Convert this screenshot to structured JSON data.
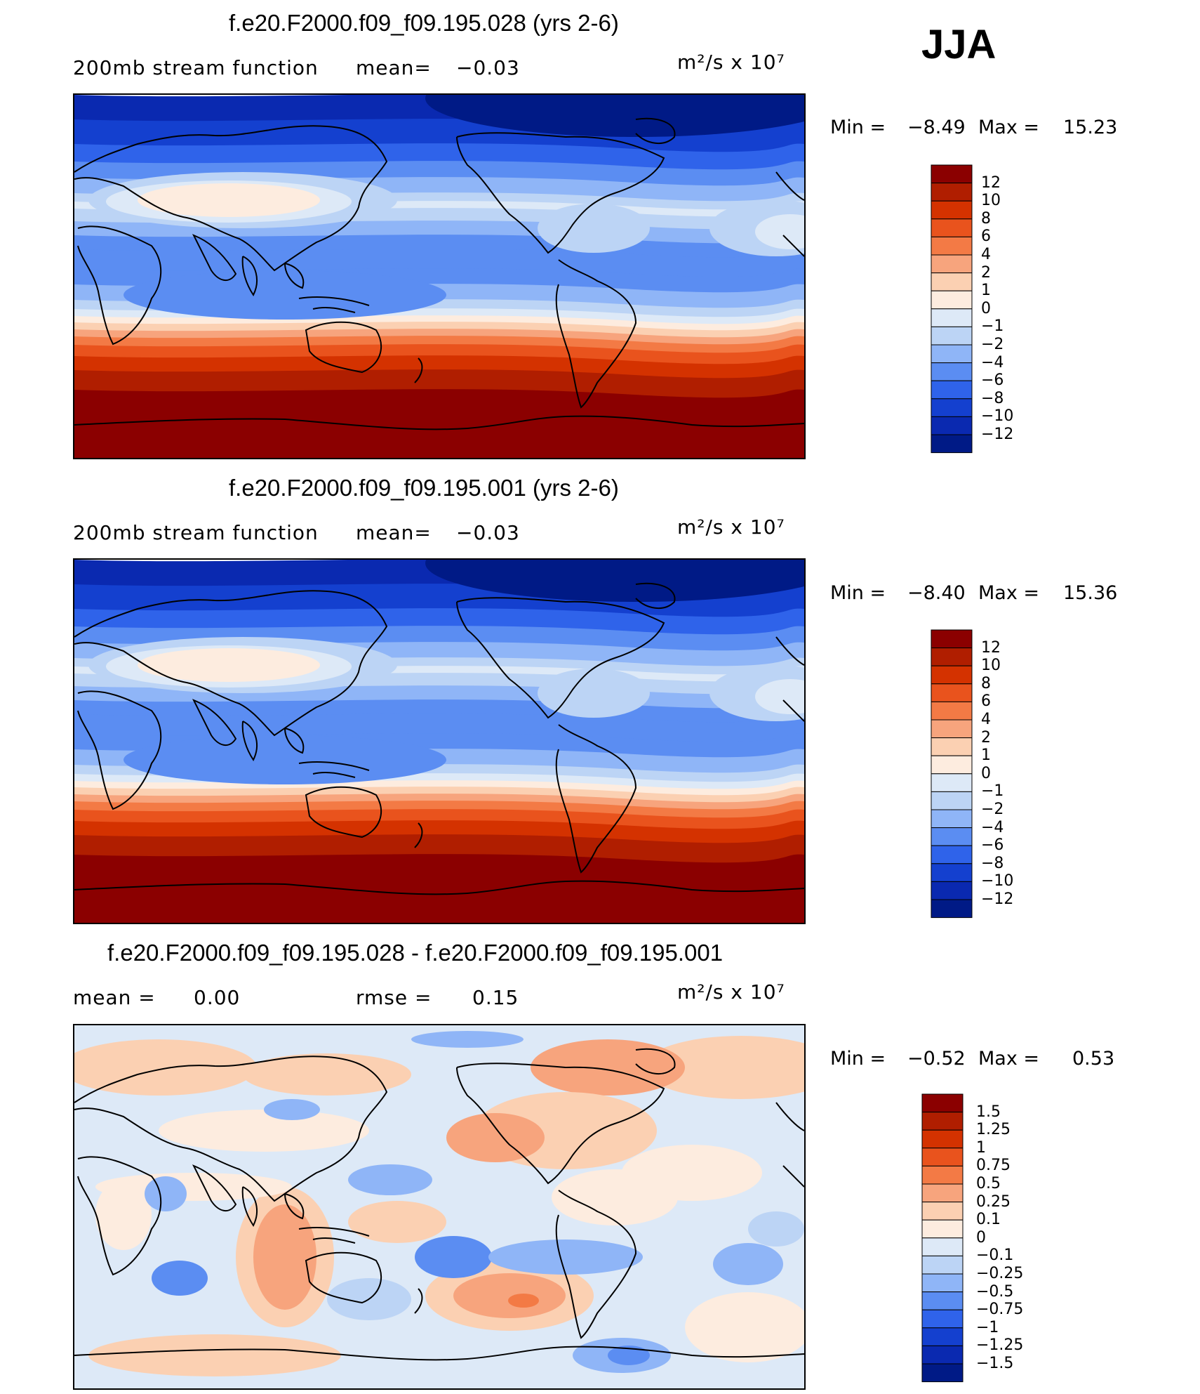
{
  "season": "JJA",
  "panels": [
    {
      "title": "f.e20.F2000.f09_f09.195.028 (yrs 2-6)",
      "subtitle": "200mb stream function",
      "mean_label": "mean=",
      "mean_value": "−0.03",
      "units": "m²/s x 10⁷",
      "min_label": "Min =",
      "min_value": "−8.49",
      "max_label": "Max =",
      "max_value": "15.23",
      "map_icon": "stream-function-map"
    },
    {
      "title": "f.e20.F2000.f09_f09.195.001 (yrs 2-6)",
      "subtitle": "200mb stream function",
      "mean_label": "mean=",
      "mean_value": "−0.03",
      "units": "m²/s x 10⁷",
      "min_label": "Min =",
      "min_value": "−8.40",
      "max_label": "Max =",
      "max_value": "15.36",
      "map_icon": "stream-function-map"
    },
    {
      "title": "f.e20.F2000.f09_f09.195.028 - f.e20.F2000.f09_f09.195.001",
      "mean_label": "mean =",
      "mean_value": "0.00",
      "rmse_label": "rmse =",
      "rmse_value": "0.15",
      "units": "m²/s x 10⁷",
      "min_label": "Min =",
      "min_value": "−0.52",
      "max_label": "Max =",
      "max_value": "0.53",
      "map_icon": "difference-map"
    }
  ],
  "colorbars": {
    "field_levels": [
      "12",
      "10",
      "8",
      "6",
      "4",
      "2",
      "1",
      "0",
      "−1",
      "−2",
      "−4",
      "−6",
      "−8",
      "−10",
      "−12"
    ],
    "field_colors": [
      "#8b0000",
      "#b01e00",
      "#d43200",
      "#e9531d",
      "#f37a45",
      "#f7a47d",
      "#fbd0b2",
      "#fdecdf",
      "#dde9f7",
      "#bcd4f5",
      "#8fb5f7",
      "#5b8df2",
      "#2f63ea",
      "#1440cf",
      "#0a29b0",
      "#001a86"
    ],
    "diff_levels": [
      "1.5",
      "1.25",
      "1",
      "0.75",
      "0.5",
      "0.25",
      "0.1",
      "0",
      "−0.1",
      "−0.25",
      "−0.5",
      "−0.75",
      "−1",
      "−1.25",
      "−1.5"
    ],
    "diff_colors": [
      "#8b0000",
      "#b01e00",
      "#d43200",
      "#e9531d",
      "#f37a45",
      "#f7a47d",
      "#fbd0b2",
      "#fdecdf",
      "#dde9f7",
      "#bcd4f5",
      "#8fb5f7",
      "#5b8df2",
      "#2f63ea",
      "#1440cf",
      "#0a29b0",
      "#001a86"
    ]
  },
  "chart_data": [
    {
      "type": "heatmap",
      "title": "f.e20.F2000.f09_f09.195.028 (yrs 2-6)",
      "variable": "200mb stream function",
      "units": "m²/s x 10⁷",
      "mean": -0.03,
      "min": -8.49,
      "max": 15.23,
      "levels": [
        -12,
        -10,
        -8,
        -6,
        -4,
        -2,
        -1,
        0,
        1,
        2,
        4,
        6,
        8,
        10,
        12
      ]
    },
    {
      "type": "heatmap",
      "title": "f.e20.F2000.f09_f09.195.001 (yrs 2-6)",
      "variable": "200mb stream function",
      "units": "m²/s x 10⁷",
      "mean": -0.03,
      "min": -8.4,
      "max": 15.36,
      "levels": [
        -12,
        -10,
        -8,
        -6,
        -4,
        -2,
        -1,
        0,
        1,
        2,
        4,
        6,
        8,
        10,
        12
      ]
    },
    {
      "type": "heatmap",
      "title": "f.e20.F2000.f09_f09.195.028 - f.e20.F2000.f09_f09.195.001",
      "units": "m²/s x 10⁷",
      "mean": 0.0,
      "rmse": 0.15,
      "min": -0.52,
      "max": 0.53,
      "levels": [
        -1.5,
        -1.25,
        -1,
        -0.75,
        -0.5,
        -0.25,
        -0.1,
        0,
        0.1,
        0.25,
        0.5,
        0.75,
        1,
        1.25,
        1.5
      ]
    }
  ]
}
